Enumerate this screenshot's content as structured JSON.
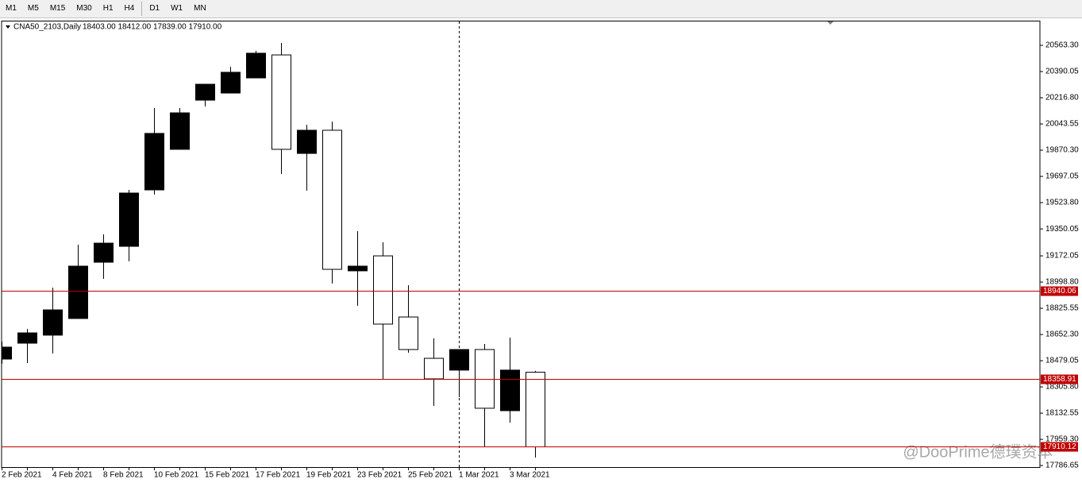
{
  "toolbar": {
    "timeframes": [
      "M1",
      "M5",
      "M15",
      "M30",
      "H1",
      "H4",
      "D1",
      "W1",
      "MN"
    ]
  },
  "chart_data": {
    "type": "candlestick",
    "symbol": "CNA50_2103,Daily",
    "ohlc_text": "18403.00 18412.00 17839.00 17910.00",
    "watermark": "@DooPrime德璞资本",
    "categories": [
      "2 Feb 2021",
      null,
      "4 Feb 2021",
      null,
      "8 Feb 2021",
      null,
      "10 Feb 2021",
      null,
      "15 Feb 2021",
      null,
      "17 Feb 2021",
      null,
      "19 Feb 2021",
      null,
      "23 Feb 2021",
      null,
      "25 Feb 2021",
      null,
      "1 Mar 2021",
      null,
      "3 Mar 2021",
      null
    ],
    "open": [
      18490,
      18595,
      18648,
      18758,
      19130,
      19235,
      19608,
      19876,
      20201,
      20248,
      20348,
      20500,
      19849,
      20002,
      19073,
      19172,
      18768,
      18495,
      18417,
      18553,
      18149,
      18403
    ],
    "high": [
      18606,
      18689,
      18962,
      19246,
      19314,
      19608,
      20149,
      20149,
      20306,
      20422,
      20527,
      20579,
      20038,
      20059,
      19335,
      19262,
      18978,
      18627,
      18553,
      18590,
      18632,
      18412
    ],
    "low": [
      18459,
      18464,
      18527,
      18758,
      19020,
      19136,
      19577,
      19876,
      20159,
      20248,
      20348,
      19713,
      19603,
      18989,
      18842,
      18354,
      18532,
      18180,
      18238,
      17907,
      18070,
      17839
    ],
    "close": [
      18569,
      18663,
      18815,
      19104,
      19256,
      19587,
      19981,
      20117,
      20306,
      20385,
      20511,
      19876,
      20002,
      19083,
      19104,
      18721,
      18553,
      18359,
      18553,
      18165,
      18417,
      17910
    ],
    "up_color": "#000000",
    "down_color": "#ffffff",
    "ylim": [
      17776,
      20721
    ],
    "yticks": [
      {
        "value": 20563.3,
        "label": "20563.30"
      },
      20390.05,
      {
        "value": 20216.8,
        "label": "20216.80"
      },
      20043.55,
      {
        "value": 19870.3,
        "label": "19870.30"
      },
      19697.05,
      {
        "value": 19523.8,
        "label": "19523.80"
      },
      19350.05,
      19172.05,
      {
        "value": 18998.8,
        "label": "18998.80"
      },
      18825.55,
      {
        "value": 18652.3,
        "label": "18652.30"
      },
      18479.05,
      {
        "value": 18305.8,
        "label": "18305.80"
      },
      18132.55,
      {
        "value": 17959.3,
        "label": "17959.30"
      },
      17786.65
    ],
    "hlines": [
      18940.06,
      18358.91,
      17910.12
    ],
    "hline_color": "#c00000"
  }
}
